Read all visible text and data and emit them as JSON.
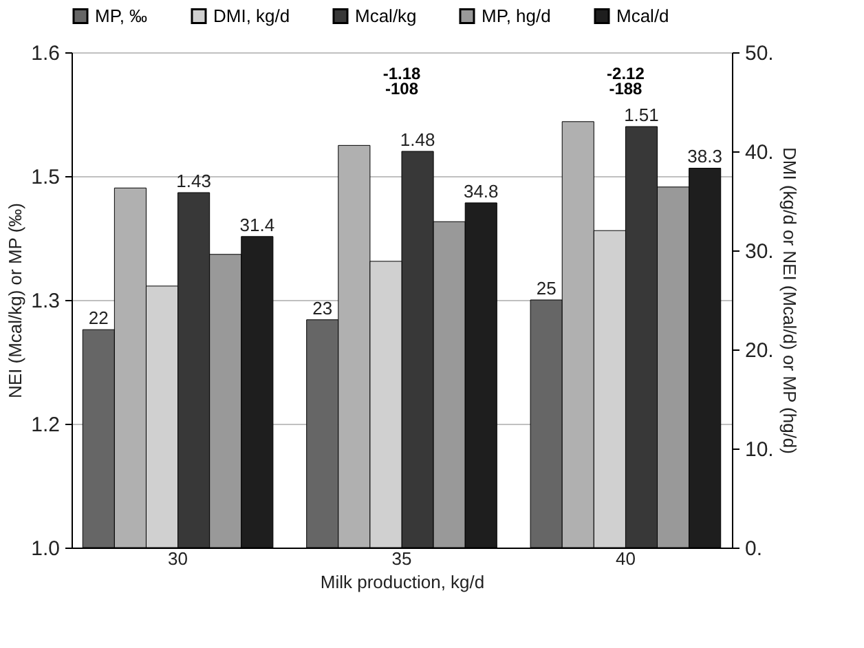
{
  "chart_data": {
    "type": "bar",
    "xlabel": "Milk production, kg/d",
    "ylabel": "NEI (Mcal/kg) or MP (‰)",
    "y2label": "DMI (kg/d or NEI (Mcal/d) or MP (hg/d)",
    "categories": [
      "30",
      "35",
      "40"
    ],
    "series": [
      {
        "name": "MP, ‰",
        "color": "#666666",
        "axis": "y2",
        "values": [
          22,
          23,
          25
        ],
        "value_labels": [
          "22",
          "23",
          "25"
        ]
      },
      {
        "color": "#b0b0b0",
        "axis": "y2",
        "values": [
          36.3,
          40.6,
          43
        ]
      },
      {
        "name": "DMI, kg/d",
        "color": "#d0d0d0",
        "axis": "y2",
        "values": [
          26.4,
          28.9,
          32
        ]
      },
      {
        "name": "Mcal/kg",
        "color": "#383838",
        "values": [
          1.43,
          1.48,
          1.51
        ],
        "value_labels": [
          "1.43",
          "1.48",
          "1.51"
        ]
      },
      {
        "name": "MP, hg/d",
        "color": "#999999",
        "axis": "y2",
        "values": [
          29.6,
          32.9,
          36.4
        ]
      },
      {
        "name": "Mcal/d",
        "color": "#1e1e1e",
        "axis": "y2",
        "values": [
          31.4,
          34.8,
          38.3
        ],
        "value_labels": [
          "31.4",
          "34.8",
          "38.3"
        ]
      }
    ],
    "ylim": [
      1.0,
      1.6
    ],
    "yticks": [
      {
        "value": 1,
        "label": "1.0"
      },
      {
        "value": 1.15,
        "label": "1.2"
      },
      1.3,
      {
        "value": 1.45,
        "label": "1.5"
      },
      1.6
    ],
    "y2lim": [
      0,
      50
    ],
    "y2ticks": [
      {
        "value": 0,
        "label": "0."
      },
      {
        "value": 10,
        "label": "10."
      },
      {
        "value": 20,
        "label": "20."
      },
      {
        "value": 30,
        "label": "30."
      },
      {
        "value": 40,
        "label": "40."
      },
      {
        "value": 50,
        "label": "50."
      }
    ],
    "grid": "y",
    "legend": "top",
    "annotations": [
      "-1.18",
      "-2.12",
      "-108",
      "-188"
    ]
  }
}
